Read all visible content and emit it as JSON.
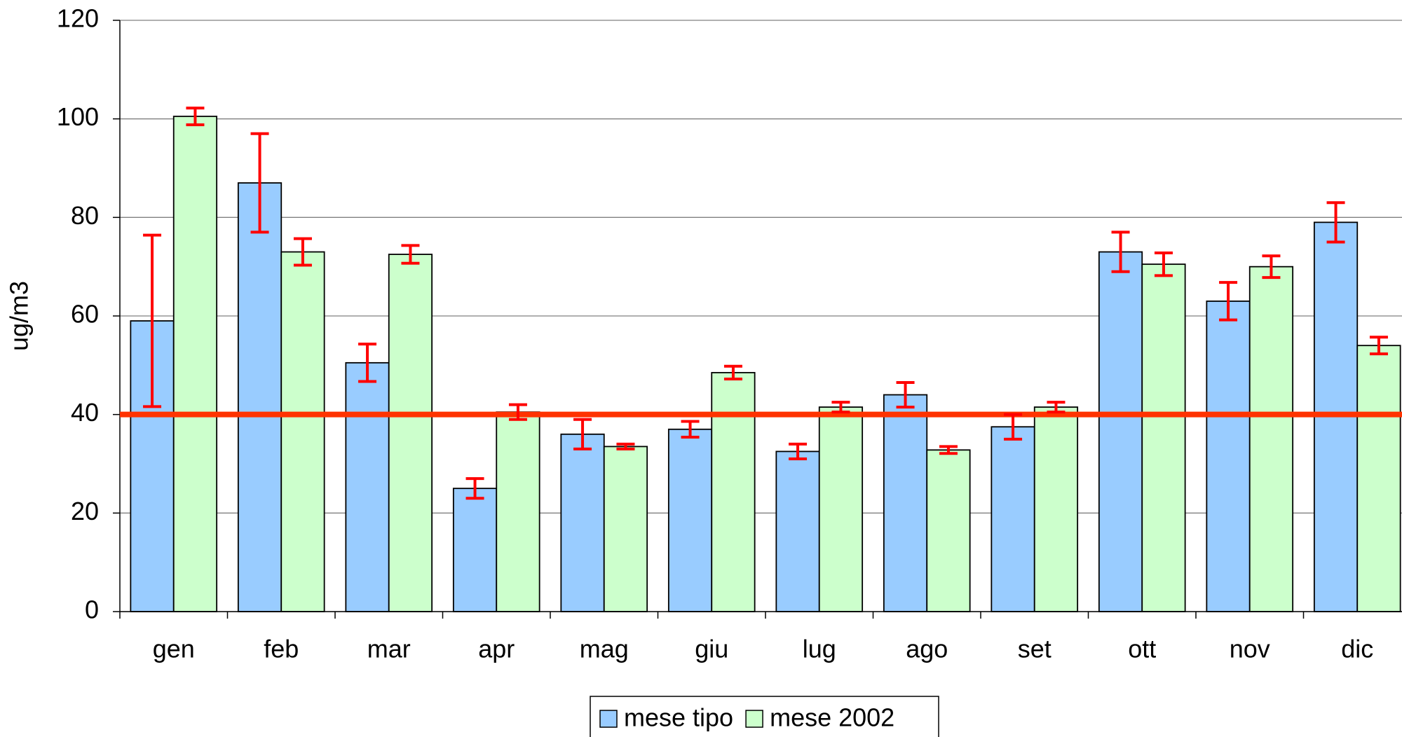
{
  "chart_data": {
    "type": "bar",
    "y_label": "ug/m3",
    "categories": [
      "gen",
      "feb",
      "mar",
      "apr",
      "mag",
      "giu",
      "lug",
      "ago",
      "set",
      "ott",
      "nov",
      "dic"
    ],
    "series": [
      {
        "name": "mese tipo",
        "color": "#99ccff",
        "values": [
          59,
          87,
          50.5,
          25,
          36,
          37,
          32.5,
          44,
          37.5,
          73,
          63,
          79
        ],
        "errors": [
          17.4,
          10,
          3.8,
          2,
          3,
          1.6,
          1.5,
          2.5,
          2.5,
          4,
          3.8,
          4
        ]
      },
      {
        "name": "mese 2002",
        "color": "#ccffcc",
        "values": [
          100.5,
          73,
          72.5,
          40.5,
          33.5,
          48.5,
          41.5,
          32.8,
          41.5,
          70.5,
          70,
          54
        ],
        "errors": [
          1.7,
          2.7,
          1.8,
          1.5,
          0.5,
          1.3,
          1,
          0.7,
          1,
          2.3,
          2.2,
          1.7
        ]
      }
    ],
    "error_color": "#ff0000",
    "threshold": 40,
    "threshold_color": "#ff3300",
    "ylim": [
      0,
      120
    ],
    "yticks": [
      0,
      20,
      40,
      60,
      80,
      100,
      120
    ],
    "grid": true,
    "legend": "bottom"
  }
}
